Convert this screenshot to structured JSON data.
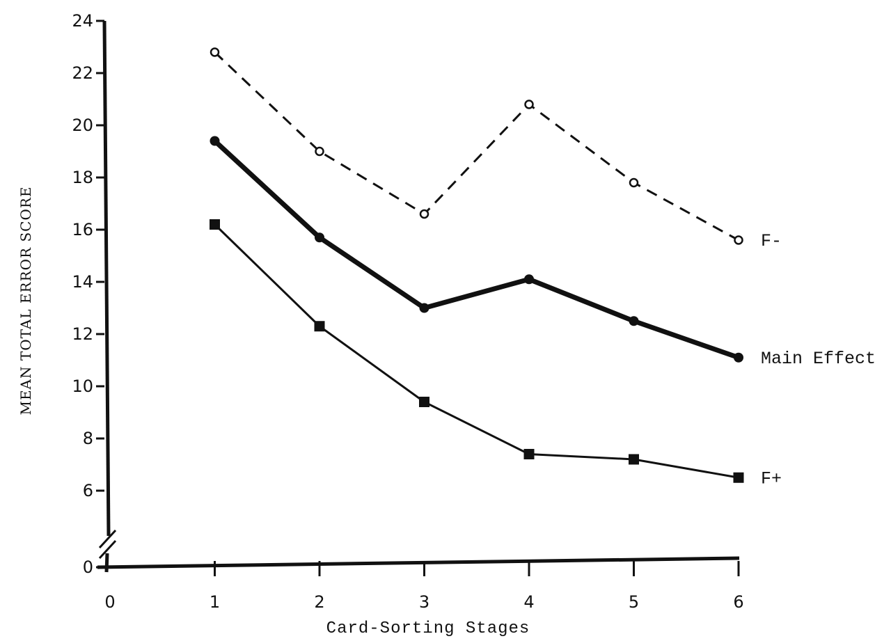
{
  "chart_data": {
    "type": "line",
    "xlabel": "Card-Sorting Stages",
    "ylabel": "MEAN TOTAL ERROR SCORE",
    "x": [
      1,
      2,
      3,
      4,
      5,
      6
    ],
    "x_ticks": [
      "0",
      "1",
      "2",
      "3",
      "4",
      "5",
      "6"
    ],
    "y_ticks": [
      "0",
      "6",
      "8",
      "10",
      "12",
      "14",
      "16",
      "18",
      "20",
      "22",
      "24"
    ],
    "ylim": [
      0,
      24
    ],
    "y_axis_break": true,
    "grid": false,
    "series": [
      {
        "name": "F-",
        "values": [
          22.8,
          19.0,
          16.6,
          20.8,
          17.8,
          15.6
        ],
        "line": "dashed",
        "marker": "open-circle"
      },
      {
        "name": "Main Effect",
        "values": [
          19.4,
          15.7,
          13.0,
          14.1,
          12.5,
          11.1
        ],
        "line": "thick",
        "marker": "filled-circle"
      },
      {
        "name": "F+",
        "values": [
          16.2,
          12.3,
          9.4,
          7.4,
          7.2,
          6.5
        ],
        "line": "thin",
        "marker": "filled-square"
      }
    ]
  }
}
